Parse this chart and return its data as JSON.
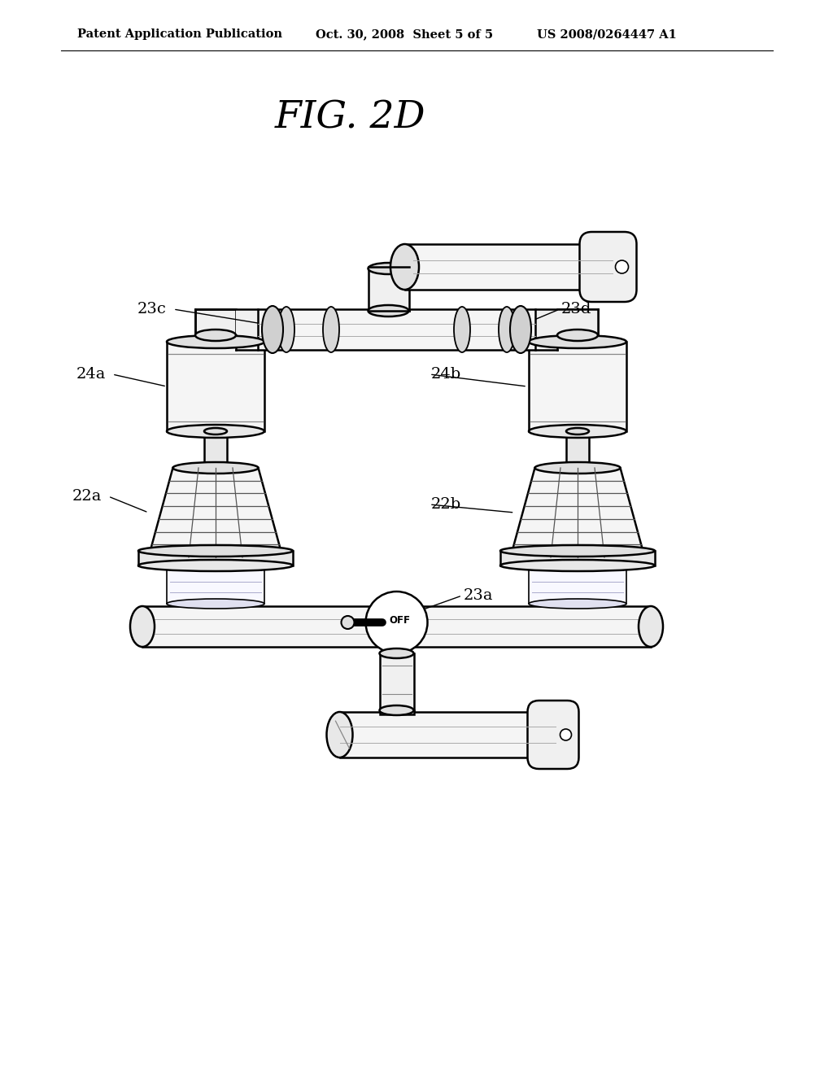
{
  "header_left": "Patent Application Publication",
  "header_center": "Oct. 30, 2008  Sheet 5 of 5",
  "header_right": "US 2008/0264447 A1",
  "title": "FIG. 2D",
  "bg_color": "#ffffff"
}
